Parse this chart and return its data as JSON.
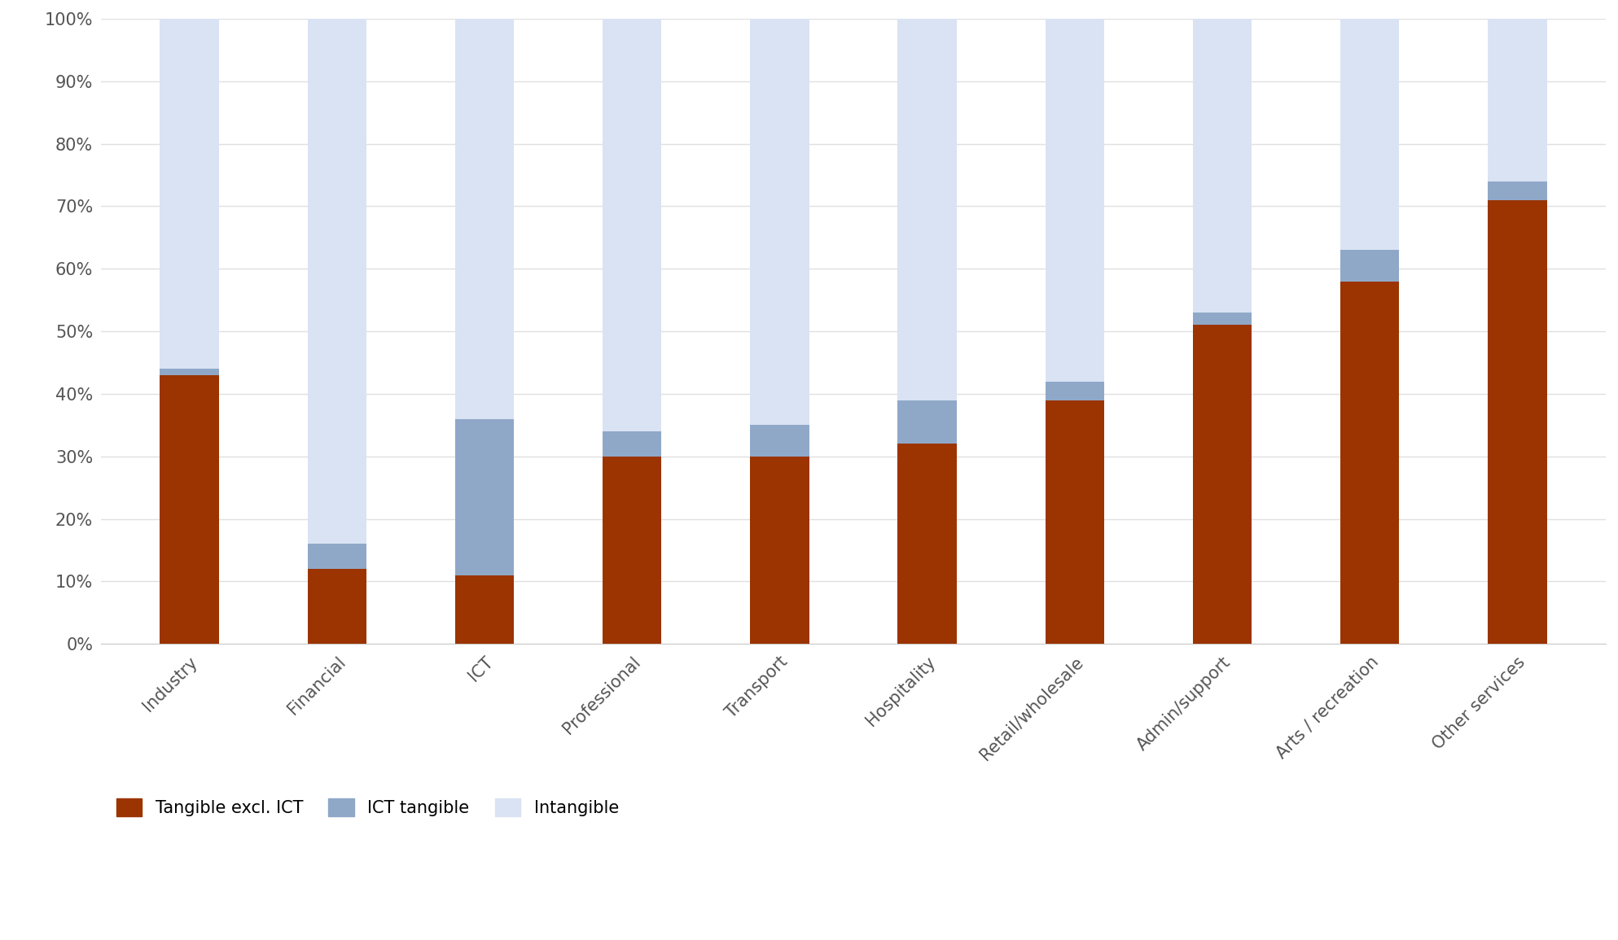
{
  "categories": [
    "Industry",
    "Financial",
    "ICT",
    "Professional",
    "Transport",
    "Hospitality",
    "Retail/wholesale",
    "Admin/support",
    "Arts / recreation",
    "Other services"
  ],
  "tangible_excl_ict": [
    43,
    12,
    11,
    30,
    30,
    32,
    39,
    51,
    58,
    71
  ],
  "ict_tangible": [
    1,
    4,
    25,
    4,
    5,
    7,
    3,
    2,
    5,
    3
  ],
  "intangible": [
    56,
    84,
    64,
    66,
    65,
    61,
    58,
    47,
    37,
    26
  ],
  "color_tangible": "#9B3400",
  "color_ict": "#8FA8C8",
  "color_intangible": "#DAE3F3",
  "legend_labels": [
    "Tangible excl. ICT",
    "ICT tangible",
    "Intangible"
  ],
  "ylabel_ticks": [
    "0%",
    "10%",
    "20%",
    "30%",
    "40%",
    "50%",
    "60%",
    "70%",
    "80%",
    "90%",
    "100%"
  ],
  "bar_width": 0.4,
  "ylim": [
    0,
    100
  ]
}
